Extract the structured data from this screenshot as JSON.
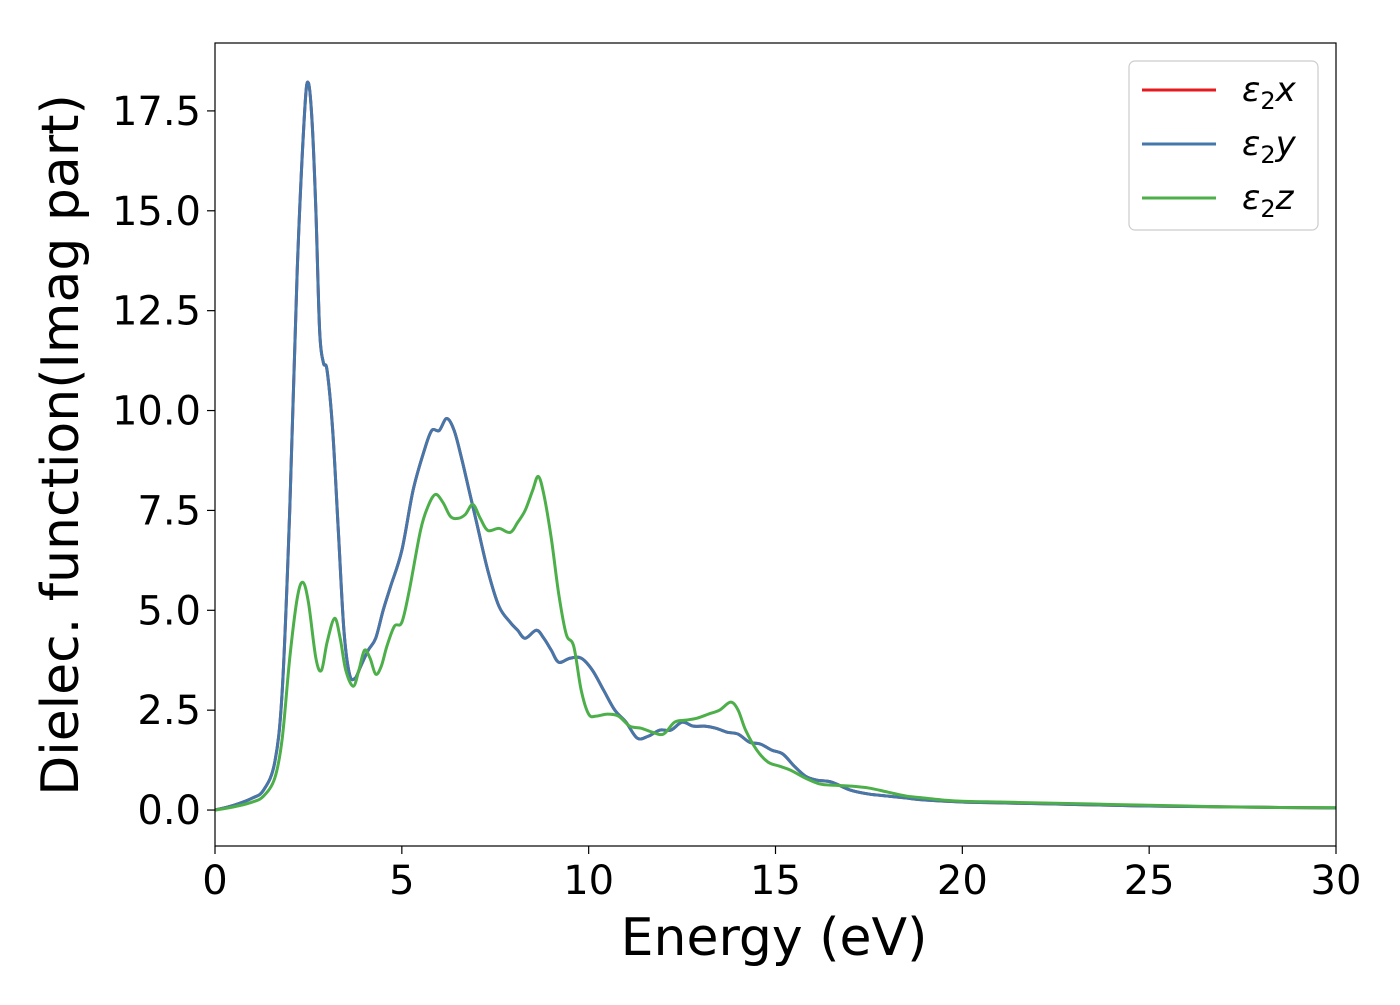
{
  "chart_data": {
    "type": "line",
    "title": "",
    "xlabel": "Energy (eV)",
    "ylabel": "Dielec. function(Imag part)",
    "xlim": [
      0,
      30
    ],
    "ylim": [
      -0.9,
      19.2
    ],
    "xticks": [
      0,
      5,
      10,
      15,
      20,
      25,
      30
    ],
    "xtick_labels": [
      "0",
      "5",
      "10",
      "15",
      "20",
      "25",
      "30"
    ],
    "yticks": [
      0.0,
      2.5,
      5.0,
      7.5,
      10.0,
      12.5,
      15.0,
      17.5
    ],
    "ytick_labels": [
      "0.0",
      "2.5",
      "5.0",
      "7.5",
      "10.0",
      "12.5",
      "15.0",
      "17.5"
    ],
    "grid": false,
    "legend": {
      "position": "top-right"
    },
    "series": [
      {
        "name": "ε2x",
        "symbol": "ε",
        "subscript": "2",
        "suffix": "x",
        "color": "#e41a1c",
        "x": [
          0,
          0.5,
          1.0,
          1.3,
          1.6,
          1.8,
          2.0,
          2.2,
          2.4,
          2.5,
          2.6,
          2.7,
          2.8,
          2.9,
          3.0,
          3.15,
          3.3,
          3.45,
          3.6,
          3.75,
          3.9,
          4.1,
          4.3,
          4.5,
          4.7,
          5.0,
          5.3,
          5.6,
          5.8,
          6.0,
          6.2,
          6.4,
          6.6,
          6.8,
          7.0,
          7.3,
          7.6,
          7.9,
          8.1,
          8.3,
          8.6,
          8.8,
          9.0,
          9.2,
          9.5,
          9.8,
          10.1,
          10.4,
          10.7,
          11.0,
          11.3,
          11.6,
          11.9,
          12.2,
          12.5,
          12.8,
          13.1,
          13.4,
          13.7,
          14.0,
          14.3,
          14.6,
          14.9,
          15.2,
          15.5,
          15.8,
          16.1,
          16.5,
          17.0,
          17.5,
          18.0,
          18.5,
          19.0,
          20.0,
          21.0,
          22.0,
          23.0,
          24.0,
          25.0,
          26.0,
          27.0,
          28.0,
          29.0,
          30.0
        ],
        "y": [
          0.0,
          0.12,
          0.3,
          0.5,
          1.2,
          3.0,
          7.5,
          13.5,
          17.5,
          18.2,
          17.2,
          15.0,
          12.0,
          11.2,
          11.0,
          9.5,
          7.0,
          4.5,
          3.4,
          3.3,
          3.6,
          4.0,
          4.3,
          5.0,
          5.6,
          6.5,
          8.0,
          9.0,
          9.5,
          9.5,
          9.8,
          9.5,
          8.8,
          8.0,
          7.2,
          6.0,
          5.1,
          4.7,
          4.5,
          4.3,
          4.5,
          4.3,
          4.0,
          3.7,
          3.8,
          3.8,
          3.5,
          3.0,
          2.5,
          2.2,
          1.8,
          1.85,
          2.0,
          2.0,
          2.2,
          2.1,
          2.1,
          2.05,
          1.95,
          1.9,
          1.7,
          1.65,
          1.5,
          1.4,
          1.1,
          0.85,
          0.75,
          0.7,
          0.5,
          0.4,
          0.35,
          0.3,
          0.25,
          0.2,
          0.18,
          0.16,
          0.14,
          0.12,
          0.1,
          0.09,
          0.08,
          0.07,
          0.06,
          0.05
        ]
      },
      {
        "name": "ε2y",
        "symbol": "ε",
        "subscript": "2",
        "suffix": "y",
        "color": "#4477aa",
        "x": [
          0,
          0.5,
          1.0,
          1.3,
          1.6,
          1.8,
          2.0,
          2.2,
          2.4,
          2.5,
          2.6,
          2.7,
          2.8,
          2.9,
          3.0,
          3.15,
          3.3,
          3.45,
          3.6,
          3.75,
          3.9,
          4.1,
          4.3,
          4.5,
          4.7,
          5.0,
          5.3,
          5.6,
          5.8,
          6.0,
          6.2,
          6.4,
          6.6,
          6.8,
          7.0,
          7.3,
          7.6,
          7.9,
          8.1,
          8.3,
          8.6,
          8.8,
          9.0,
          9.2,
          9.5,
          9.8,
          10.1,
          10.4,
          10.7,
          11.0,
          11.3,
          11.6,
          11.9,
          12.2,
          12.5,
          12.8,
          13.1,
          13.4,
          13.7,
          14.0,
          14.3,
          14.6,
          14.9,
          15.2,
          15.5,
          15.8,
          16.1,
          16.5,
          17.0,
          17.5,
          18.0,
          18.5,
          19.0,
          20.0,
          21.0,
          22.0,
          23.0,
          24.0,
          25.0,
          26.0,
          27.0,
          28.0,
          29.0,
          30.0
        ],
        "y": [
          0.0,
          0.12,
          0.3,
          0.5,
          1.2,
          3.0,
          7.5,
          13.5,
          17.5,
          18.2,
          17.2,
          15.0,
          12.0,
          11.2,
          11.0,
          9.5,
          7.0,
          4.5,
          3.4,
          3.3,
          3.6,
          4.0,
          4.3,
          5.0,
          5.6,
          6.5,
          8.0,
          9.0,
          9.5,
          9.5,
          9.8,
          9.5,
          8.8,
          8.0,
          7.2,
          6.0,
          5.1,
          4.7,
          4.5,
          4.3,
          4.5,
          4.3,
          4.0,
          3.7,
          3.8,
          3.8,
          3.5,
          3.0,
          2.5,
          2.2,
          1.8,
          1.85,
          2.0,
          2.0,
          2.2,
          2.1,
          2.1,
          2.05,
          1.95,
          1.9,
          1.7,
          1.65,
          1.5,
          1.4,
          1.1,
          0.85,
          0.75,
          0.7,
          0.5,
          0.4,
          0.35,
          0.3,
          0.25,
          0.2,
          0.18,
          0.16,
          0.14,
          0.12,
          0.1,
          0.09,
          0.08,
          0.07,
          0.06,
          0.05
        ]
      },
      {
        "name": "ε2z",
        "symbol": "ε",
        "subscript": "2",
        "suffix": "z",
        "color": "#4daf4a",
        "x": [
          0,
          0.5,
          1.0,
          1.3,
          1.6,
          1.8,
          2.0,
          2.2,
          2.35,
          2.5,
          2.7,
          2.85,
          3.0,
          3.2,
          3.35,
          3.5,
          3.7,
          3.85,
          4.0,
          4.15,
          4.3,
          4.45,
          4.6,
          4.8,
          5.0,
          5.2,
          5.5,
          5.7,
          5.9,
          6.1,
          6.3,
          6.5,
          6.7,
          6.9,
          7.1,
          7.3,
          7.6,
          7.9,
          8.1,
          8.3,
          8.5,
          8.65,
          8.8,
          9.0,
          9.2,
          9.4,
          9.6,
          9.8,
          10.0,
          10.2,
          10.5,
          10.8,
          11.1,
          11.4,
          11.7,
          12.0,
          12.3,
          12.6,
          12.9,
          13.2,
          13.5,
          13.8,
          14.0,
          14.2,
          14.5,
          14.8,
          15.1,
          15.4,
          15.8,
          16.2,
          16.6,
          17.0,
          17.5,
          18.0,
          18.5,
          19.0,
          19.5,
          20.0,
          21.0,
          22.0,
          23.0,
          24.0,
          25.0,
          26.0,
          27.0,
          28.0,
          29.0,
          30.0
        ],
        "y": [
          0.0,
          0.08,
          0.2,
          0.35,
          0.8,
          1.8,
          3.8,
          5.3,
          5.7,
          5.2,
          3.8,
          3.5,
          4.2,
          4.8,
          4.3,
          3.5,
          3.1,
          3.5,
          4.0,
          3.8,
          3.4,
          3.6,
          4.1,
          4.6,
          4.7,
          5.5,
          7.0,
          7.6,
          7.9,
          7.7,
          7.35,
          7.3,
          7.4,
          7.65,
          7.3,
          7.0,
          7.05,
          6.95,
          7.2,
          7.5,
          8.0,
          8.35,
          7.9,
          6.8,
          5.4,
          4.4,
          4.1,
          3.0,
          2.4,
          2.35,
          2.4,
          2.35,
          2.1,
          2.05,
          1.95,
          1.9,
          2.2,
          2.25,
          2.3,
          2.4,
          2.5,
          2.7,
          2.5,
          2.0,
          1.5,
          1.2,
          1.1,
          1.0,
          0.8,
          0.65,
          0.62,
          0.6,
          0.55,
          0.45,
          0.35,
          0.3,
          0.25,
          0.22,
          0.2,
          0.18,
          0.16,
          0.14,
          0.12,
          0.1,
          0.08,
          0.07,
          0.06,
          0.06
        ]
      }
    ]
  }
}
